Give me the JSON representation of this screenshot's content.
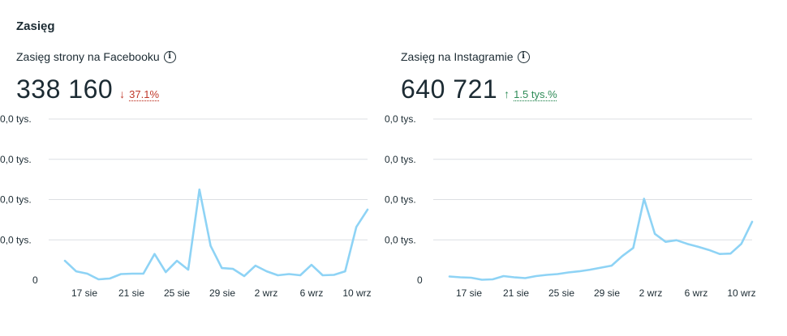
{
  "section": {
    "title": "Zasięg"
  },
  "panels": [
    {
      "title": "Zasięg strony na Facebooku",
      "value": "338 160",
      "change": {
        "direction": "down",
        "arrow": "↓",
        "text": "37.1%"
      }
    },
    {
      "title": "Zasięg na Instagramie",
      "value": "640 721",
      "change": {
        "direction": "up",
        "arrow": "↑",
        "text": "1.5 tys.%"
      }
    }
  ],
  "chart_data": [
    {
      "type": "line",
      "title": "Zasięg strony na Facebooku",
      "y_tick_labels": [
        "0",
        "0,0 tys.",
        "0,0 tys.",
        "0,0 tys.",
        "0,0 tys."
      ],
      "x_tick_labels": [
        "17 sie",
        "21 sie",
        "25 sie",
        "29 sie",
        "2 wrz",
        "6 wrz",
        "10 wrz"
      ],
      "y_range": [
        0,
        40
      ],
      "series": [
        {
          "color": "#8ed3f5",
          "values": [
            4.8,
            2.2,
            1.6,
            0.2,
            0.4,
            1.5,
            1.6,
            1.6,
            6.5,
            2.0,
            4.8,
            2.6,
            22.5,
            8.5,
            3.0,
            2.8,
            1.0,
            3.6,
            2.2,
            1.2,
            1.5,
            1.2,
            3.8,
            1.2,
            1.3,
            2.2,
            13.2,
            17.5
          ]
        }
      ],
      "grid": true
    },
    {
      "type": "line",
      "title": "Zasięg na Instagramie",
      "y_tick_labels": [
        "0",
        "0,0 tys.",
        "0,0 tys.",
        "0,0 tys.",
        "0,0 tys."
      ],
      "x_tick_labels": [
        "17 sie",
        "21 sie",
        "25 sie",
        "29 sie",
        "2 wrz",
        "6 wrz",
        "10 wrz"
      ],
      "y_range": [
        0,
        40
      ],
      "series": [
        {
          "color": "#8ed3f5",
          "values": [
            0.9,
            0.7,
            0.6,
            0.1,
            0.2,
            1.0,
            0.7,
            0.5,
            1.0,
            1.3,
            1.5,
            1.9,
            2.2,
            2.6,
            3.1,
            3.6,
            6.0,
            8.0,
            20.2,
            11.5,
            9.5,
            9.9,
            9.0,
            8.3,
            7.5,
            6.5,
            6.6,
            9.0,
            14.5
          ]
        }
      ],
      "grid": true
    }
  ]
}
